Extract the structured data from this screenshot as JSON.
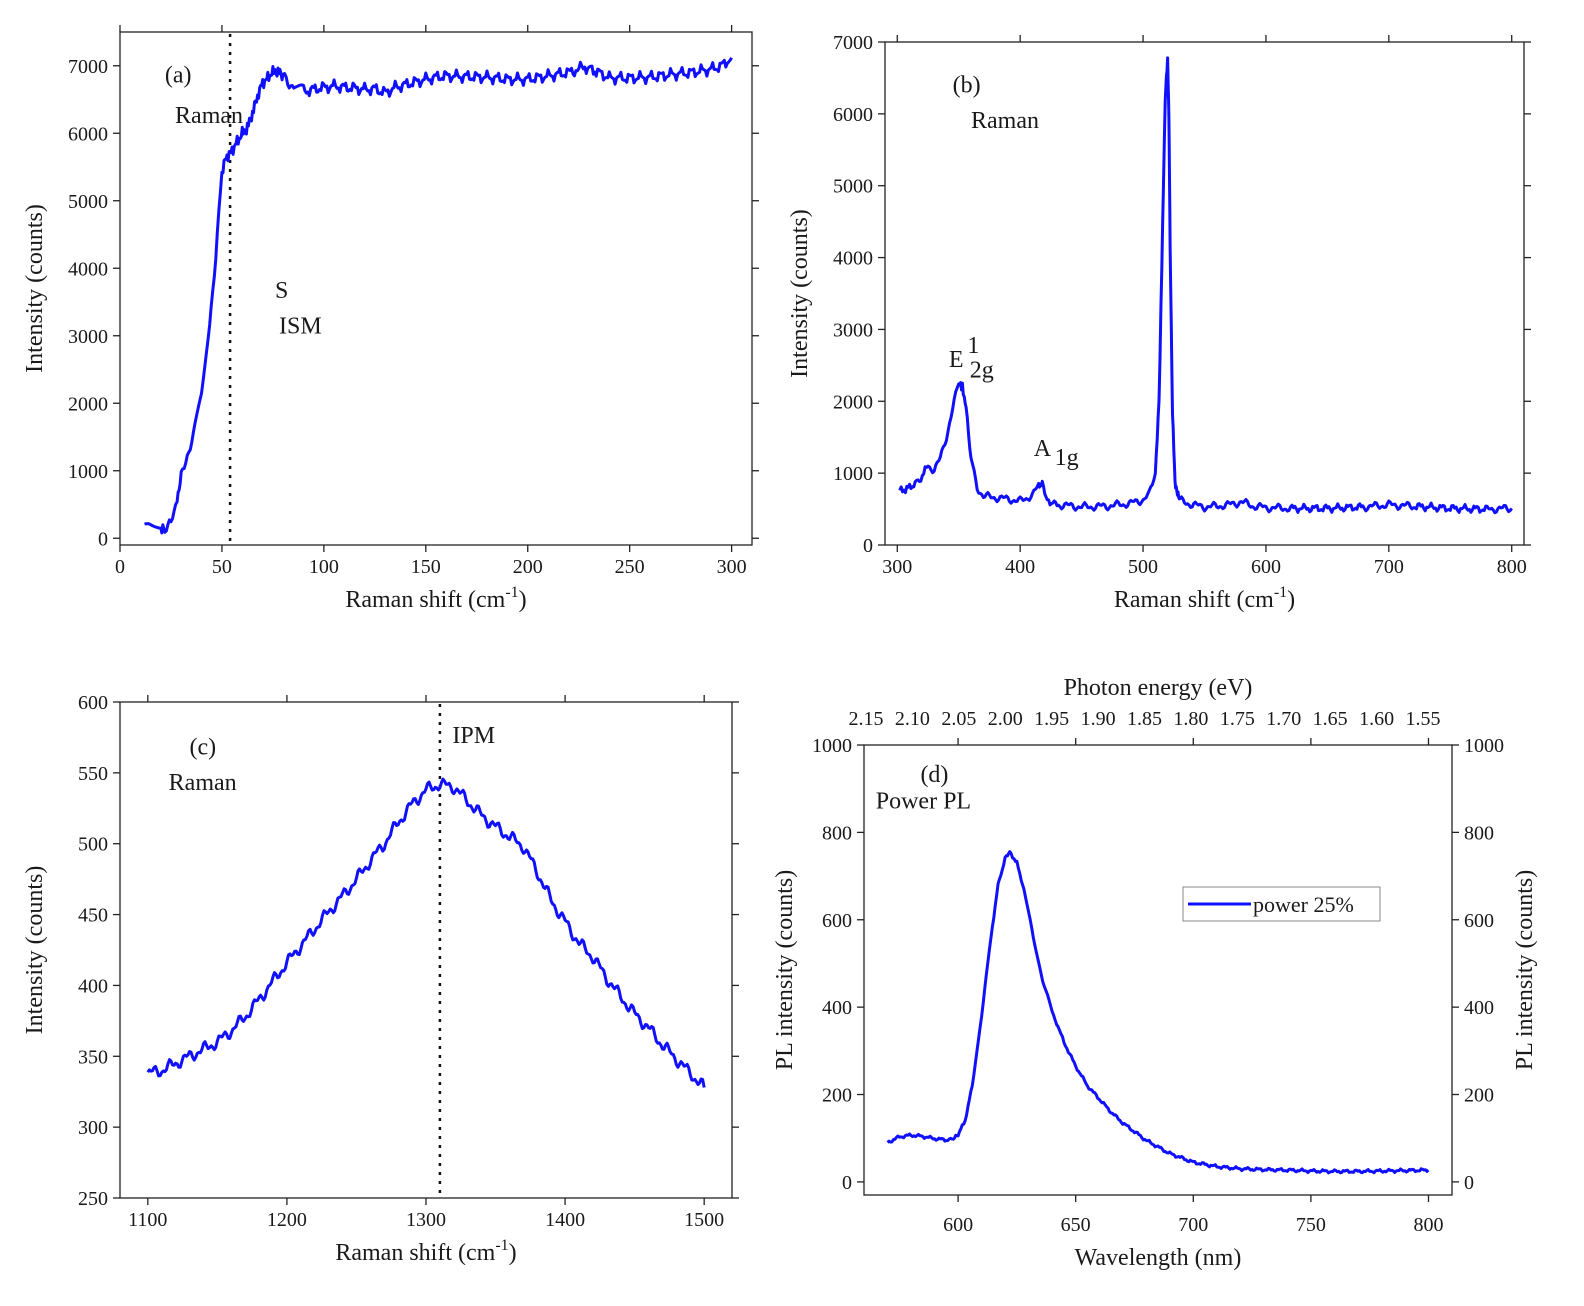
{
  "chart_data": [
    {
      "id": "a",
      "type": "line",
      "panel_label": "(a)",
      "xlabel_main": "Raman shift (cm",
      "xlabel_sup": "-1",
      "xlabel_close": ")",
      "ylabel": "Intensity (counts)",
      "xlim": [
        0,
        310
      ],
      "ylim": [
        -100,
        7500
      ],
      "xticks": [
        0,
        50,
        100,
        150,
        200,
        250,
        300
      ],
      "yticks": [
        0,
        1000,
        2000,
        3000,
        4000,
        5000,
        6000,
        7000
      ],
      "vline_x": 54,
      "annotations": [
        {
          "text": "(a)",
          "x": 22,
          "y": 6750
        },
        {
          "text": "Raman",
          "x": 27,
          "y": 6150
        },
        {
          "text": "S",
          "x": 76,
          "y": 3560
        },
        {
          "text": "ISM",
          "x": 78,
          "y": 3030
        }
      ],
      "series": [
        {
          "name": "Raman",
          "x": [
            12,
            16,
            20,
            22,
            25,
            28,
            30,
            33,
            36,
            40,
            44,
            47,
            50,
            52,
            54,
            56,
            58,
            60,
            62,
            64,
            66,
            68,
            70,
            72,
            74,
            76,
            78,
            80,
            83,
            86,
            90,
            95,
            100,
            105,
            110,
            115,
            120,
            125,
            130,
            135,
            140,
            145,
            150,
            155,
            160,
            170,
            180,
            190,
            200,
            210,
            220,
            228,
            235,
            240,
            250,
            260,
            270,
            280,
            290,
            295,
            300
          ],
          "y": [
            200,
            150,
            130,
            120,
            200,
            600,
            900,
            1250,
            1500,
            2100,
            3200,
            4200,
            5400,
            5650,
            5700,
            5800,
            5900,
            6000,
            6050,
            6200,
            6400,
            6600,
            6750,
            6800,
            6880,
            6920,
            6900,
            6850,
            6750,
            6680,
            6620,
            6650,
            6680,
            6700,
            6680,
            6670,
            6650,
            6660,
            6600,
            6680,
            6720,
            6760,
            6800,
            6830,
            6850,
            6840,
            6830,
            6800,
            6800,
            6850,
            6900,
            6980,
            6900,
            6820,
            6820,
            6830,
            6870,
            6900,
            6950,
            7000,
            7120
          ]
        }
      ]
    },
    {
      "id": "b",
      "type": "line",
      "panel_label": "(b)",
      "xlabel_main": "Raman shift (cm",
      "xlabel_sup": "-1",
      "xlabel_close": ")",
      "ylabel": "Intensity (counts)",
      "xlim": [
        290,
        810
      ],
      "ylim": [
        0,
        7000
      ],
      "xticks": [
        300,
        400,
        500,
        600,
        700,
        800
      ],
      "yticks": [
        0,
        1000,
        2000,
        3000,
        4000,
        5000,
        6000,
        7000
      ],
      "annotations": [
        {
          "text": "(b)",
          "x": 345,
          "y": 6300
        },
        {
          "text": "Raman",
          "x": 360,
          "y": 5800
        },
        {
          "text": "E",
          "x": 342,
          "y": 2480
        },
        {
          "text": "1",
          "x": 357,
          "y": 2670
        },
        {
          "text": "2g",
          "x": 359,
          "y": 2330
        },
        {
          "text": "A",
          "x": 411,
          "y": 1240
        },
        {
          "text": "1g",
          "x": 428,
          "y": 1110
        }
      ],
      "series": [
        {
          "name": "Raman",
          "x": [
            302,
            310,
            318,
            325,
            330,
            335,
            340,
            345,
            350,
            353,
            356,
            360,
            365,
            370,
            380,
            390,
            400,
            405,
            410,
            415,
            418,
            422,
            430,
            450,
            470,
            490,
            500,
            505,
            510,
            513,
            516,
            518,
            520,
            521,
            522,
            524,
            526,
            528,
            530,
            540,
            550,
            560,
            570,
            580,
            590,
            600,
            620,
            650,
            680,
            700,
            720,
            750,
            780,
            800
          ],
          "y": [
            750,
            800,
            900,
            1100,
            1050,
            1200,
            1500,
            1900,
            2250,
            2200,
            1900,
            1200,
            800,
            680,
            660,
            640,
            610,
            650,
            700,
            820,
            850,
            620,
            560,
            530,
            540,
            580,
            630,
            700,
            1000,
            2000,
            4500,
            6200,
            6750,
            6000,
            4200,
            1800,
            900,
            700,
            620,
            560,
            530,
            540,
            560,
            600,
            540,
            520,
            510,
            510,
            530,
            560,
            540,
            510,
            500,
            510
          ]
        }
      ]
    },
    {
      "id": "c",
      "type": "line",
      "panel_label": "(c)",
      "xlabel_main": "Raman shift (cm",
      "xlabel_sup": "-1",
      "xlabel_close": ")",
      "ylabel": "Intensity (counts)",
      "xlim": [
        1080,
        1520
      ],
      "ylim": [
        250,
        600
      ],
      "xticks": [
        1100,
        1200,
        1300,
        1400,
        1500
      ],
      "yticks": [
        250,
        300,
        350,
        400,
        450,
        500,
        550,
        600
      ],
      "vline_x": 1310,
      "annotations": [
        {
          "text": "IPM",
          "x": 1319,
          "y": 571
        },
        {
          "text": "(c)",
          "x": 1130,
          "y": 563
        },
        {
          "text": "Raman",
          "x": 1115,
          "y": 538
        }
      ],
      "series": [
        {
          "name": "Raman",
          "x": [
            1100,
            1110,
            1120,
            1130,
            1140,
            1150,
            1160,
            1170,
            1180,
            1190,
            1200,
            1210,
            1220,
            1230,
            1240,
            1250,
            1260,
            1270,
            1280,
            1290,
            1300,
            1310,
            1320,
            1330,
            1340,
            1350,
            1360,
            1370,
            1380,
            1390,
            1400,
            1410,
            1420,
            1430,
            1440,
            1450,
            1460,
            1470,
            1480,
            1490,
            1500
          ],
          "y": [
            338,
            340,
            345,
            350,
            355,
            360,
            368,
            378,
            390,
            403,
            416,
            428,
            440,
            452,
            463,
            475,
            488,
            500,
            515,
            528,
            538,
            542,
            540,
            530,
            520,
            512,
            505,
            498,
            480,
            460,
            445,
            430,
            420,
            405,
            392,
            380,
            370,
            358,
            348,
            338,
            328
          ]
        }
      ]
    },
    {
      "id": "d",
      "type": "line",
      "panel_label": "(d)",
      "xlabel": "Wavelength (nm)",
      "ylabel": "PL intensity (counts)",
      "ylabel_right": "PL intensity (counts)",
      "top_xlabel": "Photon energy (eV)",
      "top_ticks": [
        "2.15",
        "2.10",
        "2.05",
        "2.00",
        "1.95",
        "1.90",
        "1.85",
        "1.80",
        "1.75",
        "1.70",
        "1.65",
        "1.60",
        "1.55"
      ],
      "xlim": [
        560,
        810
      ],
      "ylim": [
        -30,
        1000
      ],
      "xticks": [
        600,
        650,
        700,
        750,
        800
      ],
      "yticks": [
        0,
        200,
        400,
        600,
        800,
        1000
      ],
      "annotations": [
        {
          "text": "(d)",
          "x": 584,
          "y": 915
        },
        {
          "text": "Power PL",
          "x": 565,
          "y": 855
        }
      ],
      "legend": {
        "label": "power 25%",
        "position": "center-right"
      },
      "series": [
        {
          "name": "power 25%",
          "x": [
            570,
            575,
            580,
            585,
            590,
            595,
            598,
            600,
            603,
            606,
            610,
            614,
            617,
            620,
            622,
            625,
            628,
            632,
            636,
            640,
            645,
            650,
            655,
            660,
            665,
            670,
            680,
            690,
            700,
            710,
            720,
            730,
            740,
            750,
            760,
            770,
            780,
            790,
            800
          ],
          "y": [
            90,
            103,
            107,
            104,
            99,
            96,
            98,
            108,
            140,
            220,
            380,
            560,
            680,
            740,
            755,
            730,
            670,
            560,
            460,
            390,
            320,
            265,
            220,
            190,
            160,
            135,
            95,
            65,
            45,
            35,
            30,
            28,
            27,
            25,
            24,
            24,
            25,
            26,
            27
          ]
        }
      ]
    }
  ]
}
